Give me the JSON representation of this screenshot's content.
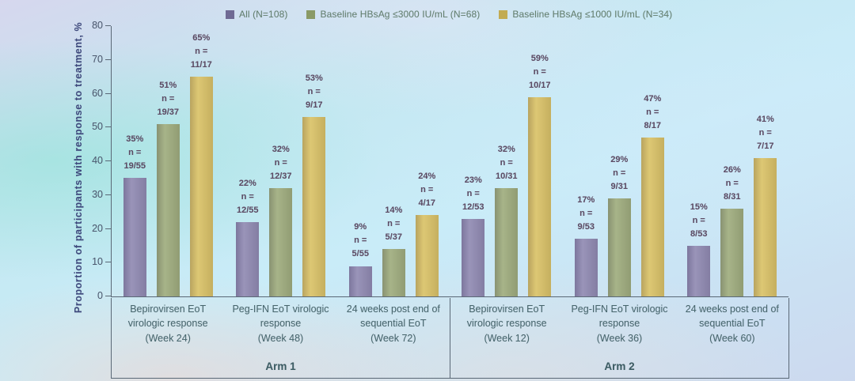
{
  "n_label": "n =",
  "axis": {
    "ylabel": "Proportion of participants with response to treatment, %",
    "yticks": [
      80,
      70,
      60,
      50,
      40,
      30,
      20,
      10,
      0
    ]
  },
  "chart_data": {
    "type": "bar",
    "title": "",
    "xlabel": "",
    "ylabel": "Proportion of participants with response to treatment, %",
    "ylim": [
      0,
      80
    ],
    "yticks": [
      0,
      10,
      20,
      30,
      40,
      50,
      60,
      70,
      80
    ],
    "grid": false,
    "legend_position": "top",
    "series": [
      {
        "key": "all",
        "name": "All (N=108)",
        "color": "#8e88b1",
        "swatch": "#6f6a94",
        "values_pct": [
          35,
          22,
          9,
          23,
          17,
          15
        ],
        "n": [
          "19/55",
          "12/55",
          "5/55",
          "12/53",
          "9/53",
          "8/53"
        ]
      },
      {
        "key": "hbsag_3000",
        "name": "Baseline HBsAg ≤3000 IU/mL (N=68)",
        "color": "#9dab7b",
        "swatch": "#8a9a66",
        "values_pct": [
          51,
          32,
          14,
          32,
          29,
          26
        ],
        "n": [
          "19/37",
          "12/37",
          "5/37",
          "10/31",
          "9/31",
          "8/31"
        ]
      },
      {
        "key": "hbsag_1000",
        "name": "Baseline HBsAg ≤1000 IU/mL (N=34)",
        "color": "#d9c164",
        "swatch": "#c2ab52",
        "values_pct": [
          65,
          53,
          24,
          59,
          47,
          41
        ],
        "n": [
          "11/17",
          "9/17",
          "4/17",
          "10/17",
          "8/17",
          "7/17"
        ]
      }
    ],
    "categories": [
      {
        "text": "Bepirovirsen EoT virologic response",
        "week": "(Week 24)"
      },
      {
        "text": "Peg-IFN EoT virologic response",
        "week": "(Week 48)"
      },
      {
        "text": "24 weeks post end of sequential EoT",
        "week": "(Week 72)"
      },
      {
        "text": "Bepirovirsen EoT virologic response",
        "week": "(Week 12)"
      },
      {
        "text": "Peg-IFN EoT virologic response",
        "week": "(Week 36)"
      },
      {
        "text": "24 weeks post end of sequential EoT",
        "week": "(Week 60)"
      }
    ],
    "arms": [
      {
        "label": "Arm 1",
        "category_indexes": [
          0,
          1,
          2
        ]
      },
      {
        "label": "Arm 2",
        "category_indexes": [
          3,
          4,
          5
        ]
      }
    ]
  }
}
